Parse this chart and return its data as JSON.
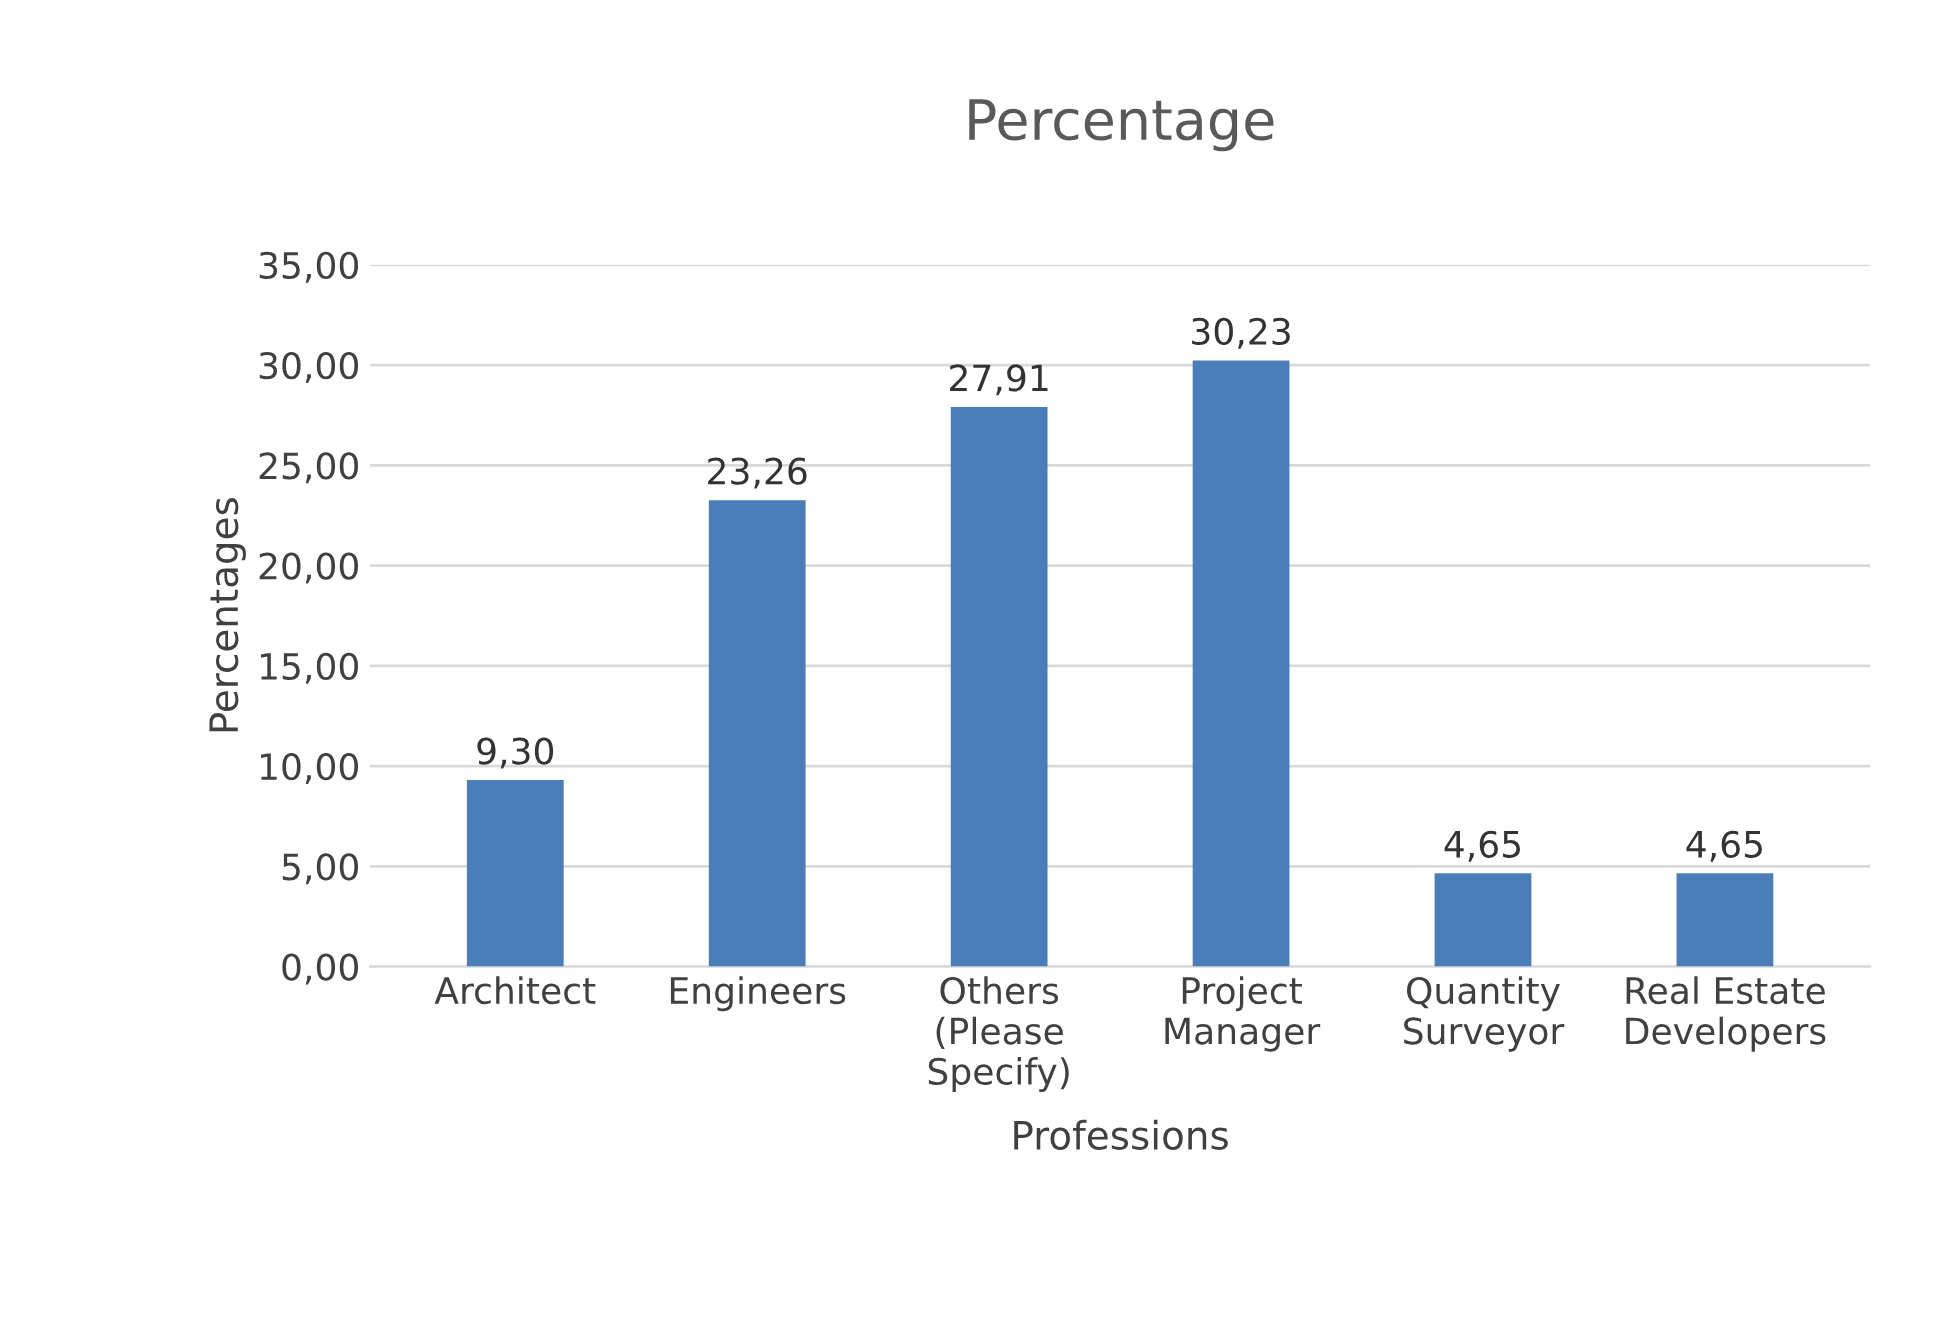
{
  "chart_data": {
    "type": "bar",
    "title": "Percentage",
    "xlabel": "Professions",
    "ylabel": "Percentages",
    "categories": [
      "Architect",
      "Engineers",
      "Others\n(Please\nSpecify)",
      "Project\nManager",
      "Quantity\nSurveyor",
      "Real Estate\nDevelopers"
    ],
    "values": [
      9.3,
      23.26,
      27.91,
      30.23,
      4.65,
      4.65
    ],
    "value_labels": [
      "9,30",
      "23,26",
      "27,91",
      "30,23",
      "4,65",
      "4,65"
    ],
    "color": "#4a7ebb",
    "ylim": [
      0,
      35
    ],
    "yticks": [
      {
        "value": 0,
        "label": "0,00"
      },
      {
        "value": 5,
        "label": "5,00"
      },
      {
        "value": 10,
        "label": "10,00"
      },
      {
        "value": 15,
        "label": "15,00"
      },
      {
        "value": 20,
        "label": "20,00"
      },
      {
        "value": 25,
        "label": "25,00"
      },
      {
        "value": 30,
        "label": "30,00"
      },
      {
        "value": 35,
        "label": "35,00"
      }
    ],
    "grid": "y",
    "legend": false
  }
}
